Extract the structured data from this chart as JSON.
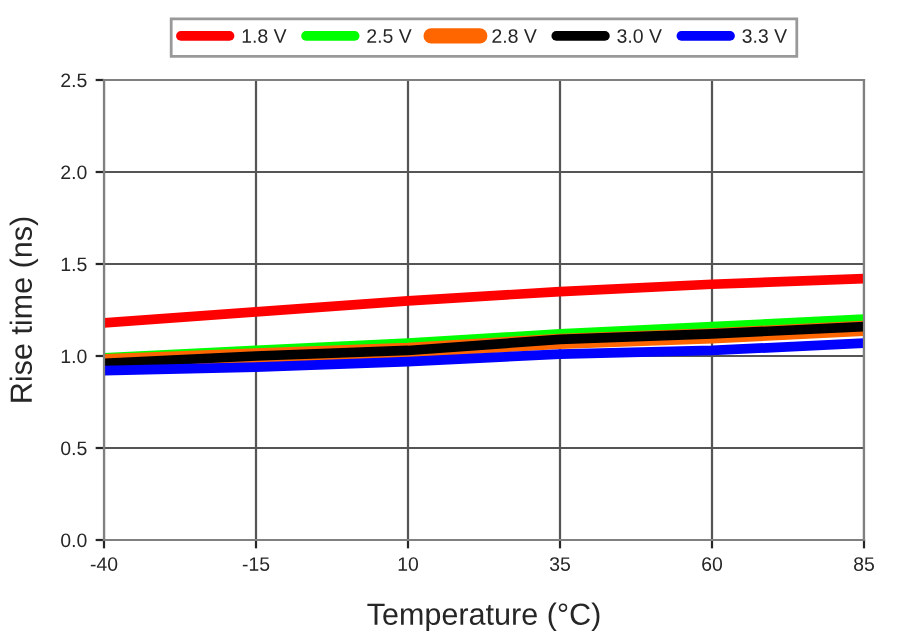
{
  "chart_data": {
    "type": "line",
    "xlabel": "Temperature (°C)",
    "ylabel": "Rise time (ns)",
    "x": [
      -40,
      -15,
      10,
      35,
      60,
      85
    ],
    "series": [
      {
        "name": "1.8 V",
        "color": "#ff0000",
        "values": [
          1.18,
          1.24,
          1.3,
          1.35,
          1.39,
          1.42
        ]
      },
      {
        "name": "2.5 V",
        "color": "#00ff00",
        "values": [
          0.99,
          1.03,
          1.07,
          1.12,
          1.16,
          1.2
        ]
      },
      {
        "name": "2.8 V",
        "color": "#ff6600",
        "values": [
          0.97,
          1.0,
          1.03,
          1.08,
          1.11,
          1.15
        ]
      },
      {
        "name": "3.0 V",
        "color": "#000000",
        "values": [
          0.96,
          1.0,
          1.03,
          1.09,
          1.12,
          1.16
        ]
      },
      {
        "name": "3.3 V",
        "color": "#0000ff",
        "values": [
          0.92,
          0.94,
          0.97,
          1.01,
          1.03,
          1.07
        ]
      }
    ],
    "xlim": [
      -40,
      85
    ],
    "xticks": [
      -40,
      -15,
      10,
      35,
      60,
      85
    ],
    "ylim": [
      0,
      2.5
    ],
    "yticks": [
      {
        "value": 0,
        "label": "0.0"
      },
      {
        "value": 0.5,
        "label": "0.5"
      },
      {
        "value": 1,
        "label": "1.0"
      },
      {
        "value": 1.5,
        "label": "1.5"
      },
      {
        "value": 2,
        "label": "2.0"
      },
      {
        "value": 2.5,
        "label": "2.5"
      }
    ],
    "grid": true,
    "legend": "top",
    "marker": "none",
    "line_style": "solid"
  }
}
